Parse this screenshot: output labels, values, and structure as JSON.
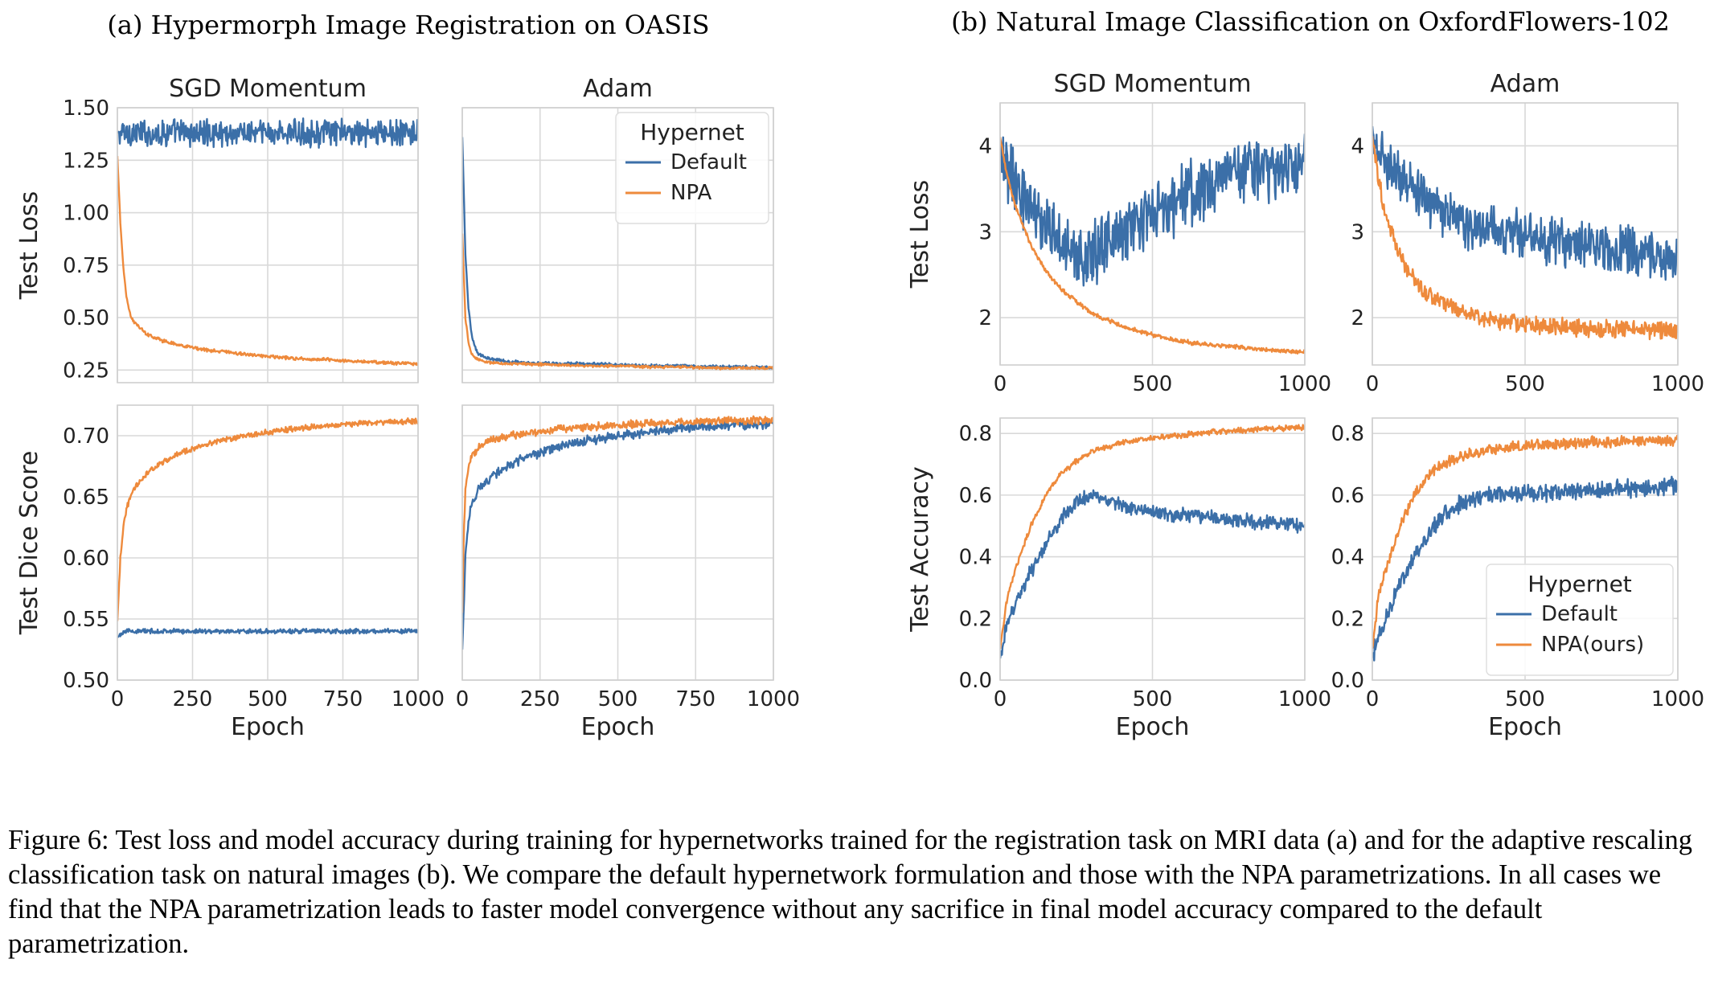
{
  "figure": {
    "group_titles": {
      "a": "(a) Hypermorph Image Registration on OASIS",
      "b": "(b) Natural Image Classification on OxfordFlowers-102"
    },
    "caption": "Figure 6: Test loss and model accuracy during training for hypernetworks trained for the registration task on MRI data (a) and for the adaptive rescaling classification task on natural images (b). We compare the default hypernetwork formulation and those with the NPA parametrizations. In all cases we find that the NPA parametrization leads to faster model convergence without any sacrifice in final model accuracy compared to the default parametrization."
  },
  "colors": {
    "default": "#3b6fa8",
    "npa": "#ee8a3c",
    "grid": "#d9d9d9",
    "frame": "#cfcfcf"
  },
  "chart_data": [
    {
      "id": "a_sgd_loss",
      "type": "line",
      "title": "SGD Momentum",
      "xlabel": "",
      "ylabel": "Test Loss",
      "xlim": [
        0,
        1000
      ],
      "ylim": [
        0.19,
        1.5
      ],
      "xticks": [
        0,
        250,
        500,
        750,
        1000
      ],
      "yticks": [
        0.25,
        0.5,
        0.75,
        1.0,
        1.25,
        1.5
      ],
      "ytick_labels": [
        "0.25",
        "0.50",
        "0.75",
        "1.00",
        "1.25",
        "1.50"
      ],
      "show_xtick_labels": false,
      "series": [
        {
          "key": "default",
          "x": [
            0,
            50,
            100,
            200,
            300,
            400,
            500,
            600,
            700,
            800,
            900,
            1000
          ],
          "y": [
            1.38,
            1.38,
            1.38,
            1.38,
            1.38,
            1.38,
            1.38,
            1.38,
            1.38,
            1.38,
            1.38,
            1.38
          ],
          "noise": 0.05
        },
        {
          "key": "npa",
          "x": [
            0,
            10,
            20,
            30,
            40,
            50,
            75,
            100,
            150,
            200,
            300,
            400,
            500,
            600,
            700,
            800,
            900,
            1000
          ],
          "y": [
            1.27,
            0.95,
            0.74,
            0.6,
            0.53,
            0.49,
            0.45,
            0.42,
            0.39,
            0.37,
            0.345,
            0.33,
            0.315,
            0.305,
            0.3,
            0.29,
            0.285,
            0.28
          ],
          "noise": 0.006
        }
      ]
    },
    {
      "id": "a_adam_loss",
      "type": "line",
      "title": "Adam",
      "xlabel": "",
      "ylabel": "",
      "xlim": [
        0,
        1000
      ],
      "ylim": [
        0.19,
        1.5
      ],
      "xticks": [
        0,
        250,
        500,
        750,
        1000
      ],
      "yticks": [
        0.25,
        0.5,
        0.75,
        1.0,
        1.25,
        1.5
      ],
      "show_ytick_labels": false,
      "show_xtick_labels": false,
      "legend": {
        "title": "Hypernet",
        "entries": [
          "Default",
          "NPA"
        ],
        "placement": "top-right"
      },
      "series": [
        {
          "key": "default",
          "x": [
            0,
            5,
            10,
            20,
            30,
            40,
            50,
            75,
            100,
            150,
            200,
            300,
            400,
            500,
            600,
            700,
            800,
            900,
            1000
          ],
          "y": [
            1.36,
            1.1,
            0.8,
            0.55,
            0.42,
            0.36,
            0.33,
            0.31,
            0.3,
            0.29,
            0.285,
            0.28,
            0.28,
            0.275,
            0.27,
            0.27,
            0.265,
            0.265,
            0.26
          ],
          "noise": 0.006
        },
        {
          "key": "npa",
          "x": [
            0,
            5,
            10,
            20,
            30,
            40,
            50,
            75,
            100,
            150,
            200,
            300,
            400,
            500,
            600,
            700,
            800,
            900,
            1000
          ],
          "y": [
            0.9,
            0.7,
            0.5,
            0.38,
            0.33,
            0.31,
            0.3,
            0.29,
            0.285,
            0.28,
            0.28,
            0.275,
            0.27,
            0.27,
            0.265,
            0.265,
            0.26,
            0.26,
            0.26
          ],
          "noise": 0.005
        }
      ]
    },
    {
      "id": "a_sgd_dice",
      "type": "line",
      "title": "",
      "xlabel": "Epoch",
      "ylabel": "Test Dice Score",
      "xlim": [
        0,
        1000
      ],
      "ylim": [
        0.5,
        0.725
      ],
      "xticks": [
        0,
        250,
        500,
        750,
        1000
      ],
      "yticks": [
        0.5,
        0.55,
        0.6,
        0.65,
        0.7
      ],
      "ytick_labels": [
        "0.50",
        "0.55",
        "0.60",
        "0.65",
        "0.70"
      ],
      "series": [
        {
          "key": "default",
          "x": [
            0,
            20,
            50,
            100,
            200,
            400,
            600,
            800,
            1000
          ],
          "y": [
            0.535,
            0.54,
            0.54,
            0.54,
            0.54,
            0.54,
            0.54,
            0.54,
            0.54
          ],
          "noise": 0.0015
        },
        {
          "key": "npa",
          "x": [
            0,
            10,
            20,
            30,
            50,
            75,
            100,
            150,
            200,
            300,
            400,
            500,
            600,
            700,
            800,
            900,
            1000
          ],
          "y": [
            0.548,
            0.6,
            0.625,
            0.64,
            0.655,
            0.663,
            0.67,
            0.678,
            0.685,
            0.693,
            0.699,
            0.703,
            0.706,
            0.708,
            0.71,
            0.711,
            0.712
          ],
          "noise": 0.0018
        }
      ]
    },
    {
      "id": "a_adam_dice",
      "type": "line",
      "title": "",
      "xlabel": "Epoch",
      "ylabel": "",
      "xlim": [
        0,
        1000
      ],
      "ylim": [
        0.5,
        0.725
      ],
      "xticks": [
        0,
        250,
        500,
        750,
        1000
      ],
      "yticks": [
        0.5,
        0.55,
        0.6,
        0.65,
        0.7
      ],
      "show_ytick_labels": false,
      "series": [
        {
          "key": "default",
          "x": [
            0,
            5,
            10,
            20,
            30,
            50,
            75,
            100,
            150,
            200,
            300,
            400,
            500,
            600,
            700,
            800,
            900,
            1000
          ],
          "y": [
            0.525,
            0.56,
            0.6,
            0.63,
            0.645,
            0.655,
            0.662,
            0.668,
            0.675,
            0.682,
            0.69,
            0.696,
            0.7,
            0.703,
            0.706,
            0.708,
            0.709,
            0.71
          ],
          "noise": 0.003
        },
        {
          "key": "npa",
          "x": [
            0,
            5,
            10,
            20,
            30,
            50,
            75,
            100,
            150,
            200,
            300,
            400,
            500,
            600,
            700,
            800,
            900,
            1000
          ],
          "y": [
            0.555,
            0.62,
            0.655,
            0.675,
            0.683,
            0.69,
            0.694,
            0.697,
            0.7,
            0.702,
            0.705,
            0.707,
            0.709,
            0.71,
            0.711,
            0.712,
            0.712,
            0.713
          ],
          "noise": 0.0025
        }
      ]
    },
    {
      "id": "b_sgd_loss",
      "type": "line",
      "title": "SGD Momentum",
      "xlabel": "",
      "ylabel": "Test Loss",
      "xlim": [
        0,
        1000
      ],
      "ylim": [
        1.45,
        4.5
      ],
      "xticks": [
        0,
        500,
        1000
      ],
      "yticks": [
        2,
        3,
        4
      ],
      "series": [
        {
          "key": "default",
          "x": [
            0,
            20,
            50,
            100,
            150,
            200,
            250,
            300,
            350,
            400,
            500,
            600,
            700,
            800,
            900,
            1000
          ],
          "y": [
            4.0,
            3.75,
            3.55,
            3.3,
            3.1,
            2.9,
            2.75,
            2.75,
            2.85,
            3.0,
            3.2,
            3.4,
            3.6,
            3.7,
            3.75,
            3.8
          ],
          "noise": 0.3
        },
        {
          "key": "npa",
          "x": [
            0,
            20,
            50,
            100,
            150,
            200,
            300,
            400,
            500,
            600,
            700,
            800,
            900,
            1000
          ],
          "y": [
            4.1,
            3.7,
            3.3,
            2.85,
            2.55,
            2.33,
            2.05,
            1.9,
            1.8,
            1.72,
            1.68,
            1.65,
            1.62,
            1.6
          ],
          "noise": 0.02
        }
      ]
    },
    {
      "id": "b_adam_loss",
      "type": "line",
      "title": "Adam",
      "xlabel": "",
      "ylabel": "",
      "xlim": [
        0,
        1000
      ],
      "ylim": [
        1.45,
        4.5
      ],
      "xticks": [
        0,
        500,
        1000
      ],
      "yticks": [
        2,
        3,
        4
      ],
      "series": [
        {
          "key": "default",
          "x": [
            0,
            20,
            50,
            100,
            200,
            300,
            400,
            500,
            600,
            700,
            800,
            900,
            1000
          ],
          "y": [
            4.2,
            3.95,
            3.8,
            3.6,
            3.3,
            3.1,
            3.0,
            2.95,
            2.9,
            2.85,
            2.8,
            2.75,
            2.7
          ],
          "noise": 0.22
        },
        {
          "key": "npa",
          "x": [
            0,
            20,
            50,
            100,
            150,
            200,
            300,
            400,
            500,
            600,
            700,
            800,
            900,
            1000
          ],
          "y": [
            4.1,
            3.6,
            3.1,
            2.65,
            2.4,
            2.22,
            2.05,
            1.97,
            1.92,
            1.9,
            1.88,
            1.87,
            1.86,
            1.85
          ],
          "noise": 0.08
        }
      ]
    },
    {
      "id": "b_sgd_acc",
      "type": "line",
      "title": "",
      "xlabel": "Epoch",
      "ylabel": "Test Accuracy",
      "xlim": [
        0,
        1000
      ],
      "ylim": [
        0.0,
        0.85
      ],
      "xticks": [
        0,
        500,
        1000
      ],
      "yticks": [
        0.0,
        0.2,
        0.4,
        0.6,
        0.8
      ],
      "ytick_labels": [
        "0.0",
        "0.2",
        "0.4",
        "0.6",
        "0.8"
      ],
      "series": [
        {
          "key": "default",
          "x": [
            0,
            20,
            50,
            100,
            150,
            200,
            250,
            300,
            350,
            400,
            500,
            600,
            700,
            800,
            900,
            1000
          ],
          "y": [
            0.07,
            0.18,
            0.25,
            0.35,
            0.44,
            0.52,
            0.58,
            0.595,
            0.585,
            0.565,
            0.545,
            0.535,
            0.53,
            0.515,
            0.51,
            0.5
          ],
          "noise": 0.018
        },
        {
          "key": "npa",
          "x": [
            0,
            20,
            50,
            100,
            150,
            200,
            250,
            300,
            400,
            500,
            600,
            700,
            800,
            900,
            1000
          ],
          "y": [
            0.1,
            0.25,
            0.36,
            0.5,
            0.6,
            0.67,
            0.71,
            0.74,
            0.77,
            0.785,
            0.795,
            0.805,
            0.81,
            0.815,
            0.82
          ],
          "noise": 0.007
        }
      ]
    },
    {
      "id": "b_adam_acc",
      "type": "line",
      "title": "",
      "xlabel": "Epoch",
      "ylabel": "",
      "xlim": [
        0,
        1000
      ],
      "ylim": [
        0.0,
        0.85
      ],
      "xticks": [
        0,
        500,
        1000
      ],
      "yticks": [
        0.0,
        0.2,
        0.4,
        0.6,
        0.8
      ],
      "ytick_labels": [
        "0.0",
        "0.2",
        "0.4",
        "0.6",
        "0.8"
      ],
      "legend": {
        "title": "Hypernet",
        "entries": [
          "Default",
          "NPA(ours)"
        ],
        "placement": "lower-right"
      },
      "series": [
        {
          "key": "default",
          "x": [
            0,
            20,
            50,
            100,
            150,
            200,
            250,
            300,
            400,
            500,
            600,
            700,
            800,
            900,
            1000
          ],
          "y": [
            0.07,
            0.15,
            0.22,
            0.33,
            0.42,
            0.5,
            0.55,
            0.58,
            0.6,
            0.605,
            0.61,
            0.615,
            0.62,
            0.625,
            0.63
          ],
          "noise": 0.022
        },
        {
          "key": "npa",
          "x": [
            0,
            20,
            50,
            100,
            150,
            200,
            250,
            300,
            400,
            500,
            600,
            700,
            800,
            900,
            1000
          ],
          "y": [
            0.1,
            0.27,
            0.38,
            0.52,
            0.62,
            0.68,
            0.71,
            0.73,
            0.75,
            0.76,
            0.765,
            0.77,
            0.775,
            0.775,
            0.78
          ],
          "noise": 0.014
        }
      ]
    }
  ]
}
